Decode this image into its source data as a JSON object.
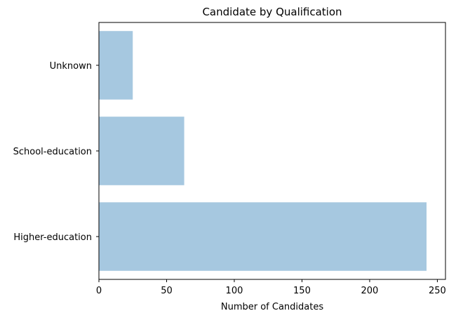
{
  "chart_data": {
    "type": "bar",
    "orientation": "horizontal",
    "title": "Candidate by Qualification",
    "xlabel": "Number of Candidates",
    "ylabel": "",
    "categories": [
      "Higher-education",
      "School-education",
      "Unknown"
    ],
    "values": [
      242,
      63,
      25
    ],
    "xlim": [
      0,
      256
    ],
    "xticks": [
      0,
      50,
      100,
      150,
      200,
      250
    ],
    "bar_color": "#a6c8e0",
    "grid": false,
    "legend": "none"
  }
}
